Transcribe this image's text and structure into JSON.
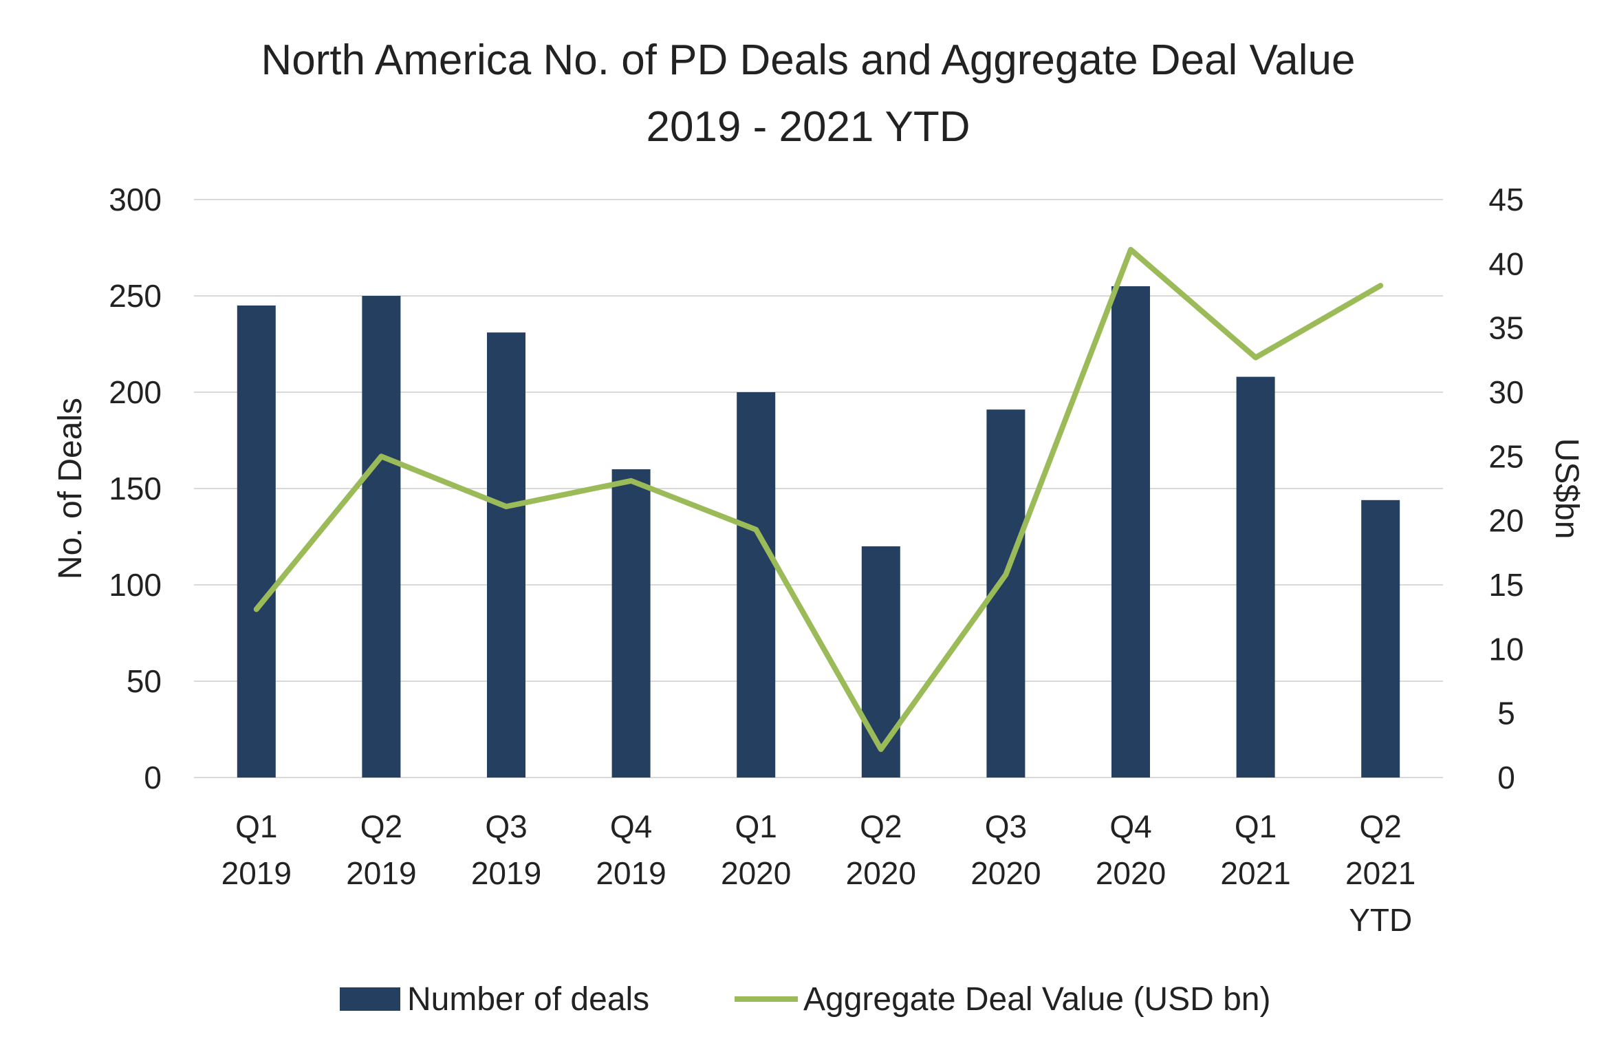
{
  "chart_data": {
    "type": "bar",
    "title": "North America No. of PD Deals and Aggregate Deal Value",
    "subtitle": "2019 - 2021 YTD",
    "categories": [
      [
        "Q1",
        "2019"
      ],
      [
        "Q2",
        "2019"
      ],
      [
        "Q3",
        "2019"
      ],
      [
        "Q4",
        "2019"
      ],
      [
        "Q1",
        "2020"
      ],
      [
        "Q2",
        "2020"
      ],
      [
        "Q3",
        "2020"
      ],
      [
        "Q4",
        "2020"
      ],
      [
        "Q1",
        "2021"
      ],
      [
        "Q2",
        "2021",
        "YTD"
      ]
    ],
    "series": [
      {
        "name": "Number of deals",
        "type": "bar",
        "axis": "left",
        "color": "#243F60",
        "values": [
          245,
          250,
          231,
          160,
          200,
          120,
          191,
          255,
          208,
          144
        ]
      },
      {
        "name": "Aggregate Deal Value (USD bn)",
        "type": "line",
        "axis": "right",
        "color": "#9BBB59",
        "values": [
          13.1,
          25.0,
          21.1,
          23.1,
          19.3,
          2.2,
          15.8,
          41.1,
          32.7,
          38.3
        ]
      }
    ],
    "y_left": {
      "label": "No. of Deals",
      "lim": [
        0,
        300
      ],
      "ticks": [
        "0",
        "50",
        "100",
        "150",
        "200",
        "250",
        "300"
      ]
    },
    "y_right": {
      "label": "US$bn",
      "lim": [
        0,
        45
      ],
      "ticks": [
        "0",
        "5",
        "10",
        "15",
        "20",
        "25",
        "30",
        "35",
        "40",
        "45"
      ]
    },
    "grid": true,
    "grid_color": "#D9D9D9",
    "legend_position": "bottom"
  }
}
